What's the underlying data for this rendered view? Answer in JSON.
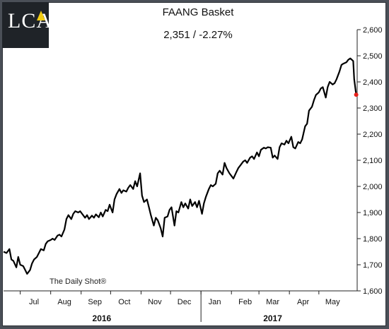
{
  "logo": {
    "text": "LCA"
  },
  "chart_data": {
    "type": "line",
    "title": "FAANG Basket",
    "subtitle": "2,351  /  -2.27%",
    "xlabel": "",
    "ylabel": "",
    "ylim": [
      1600,
      2600
    ],
    "yticks": [
      1600,
      1700,
      1800,
      1900,
      2000,
      2100,
      2200,
      2300,
      2400,
      2500,
      2600
    ],
    "ytick_labels": [
      "1,600",
      "1,700",
      "1,800",
      "1,900",
      "2,000",
      "2,100",
      "2,200",
      "2,300",
      "2,400",
      "2,500",
      "2,600"
    ],
    "xlim": [
      "2016-06-14",
      "2017-06-09"
    ],
    "month_labels": [
      {
        "label": "Jul",
        "date": "2016-07-15"
      },
      {
        "label": "Aug",
        "date": "2016-08-15"
      },
      {
        "label": "Sep",
        "date": "2016-09-15"
      },
      {
        "label": "Oct",
        "date": "2016-10-15"
      },
      {
        "label": "Nov",
        "date": "2016-11-15"
      },
      {
        "label": "Dec",
        "date": "2016-12-15"
      },
      {
        "label": "Jan",
        "date": "2017-01-15"
      },
      {
        "label": "Feb",
        "date": "2017-02-15"
      },
      {
        "label": "Mar",
        "date": "2017-03-15"
      },
      {
        "label": "Apr",
        "date": "2017-04-15"
      },
      {
        "label": "May",
        "date": "2017-05-15"
      }
    ],
    "year_labels": [
      {
        "label": "2016",
        "date": "2016-09-22"
      },
      {
        "label": "2017",
        "date": "2017-03-15"
      }
    ],
    "year_divider": "2017-01-01",
    "grid": false,
    "watermark": "The Daily Shot®",
    "line_color": "#000000",
    "marker_color": "#e8201a",
    "series": [
      {
        "values": [
          [
            "2016-06-14",
            1750
          ],
          [
            "2016-06-17",
            1745
          ],
          [
            "2016-06-20",
            1760
          ],
          [
            "2016-06-22",
            1720
          ],
          [
            "2016-06-24",
            1715
          ],
          [
            "2016-06-27",
            1690
          ],
          [
            "2016-06-29",
            1730
          ],
          [
            "2016-07-01",
            1700
          ],
          [
            "2016-07-04",
            1695
          ],
          [
            "2016-07-06",
            1680
          ],
          [
            "2016-07-08",
            1665
          ],
          [
            "2016-07-11",
            1680
          ],
          [
            "2016-07-13",
            1705
          ],
          [
            "2016-07-15",
            1720
          ],
          [
            "2016-07-18",
            1730
          ],
          [
            "2016-07-20",
            1745
          ],
          [
            "2016-07-22",
            1760
          ],
          [
            "2016-07-25",
            1755
          ],
          [
            "2016-07-27",
            1780
          ],
          [
            "2016-07-29",
            1790
          ],
          [
            "2016-08-01",
            1795
          ],
          [
            "2016-08-03",
            1800
          ],
          [
            "2016-08-05",
            1795
          ],
          [
            "2016-08-08",
            1812
          ],
          [
            "2016-08-10",
            1815
          ],
          [
            "2016-08-12",
            1808
          ],
          [
            "2016-08-15",
            1835
          ],
          [
            "2016-08-17",
            1875
          ],
          [
            "2016-08-19",
            1890
          ],
          [
            "2016-08-22",
            1875
          ],
          [
            "2016-08-24",
            1895
          ],
          [
            "2016-08-26",
            1905
          ],
          [
            "2016-08-29",
            1900
          ],
          [
            "2016-08-31",
            1905
          ],
          [
            "2016-09-02",
            1895
          ],
          [
            "2016-09-05",
            1880
          ],
          [
            "2016-09-07",
            1890
          ],
          [
            "2016-09-09",
            1875
          ],
          [
            "2016-09-12",
            1888
          ],
          [
            "2016-09-14",
            1880
          ],
          [
            "2016-09-16",
            1893
          ],
          [
            "2016-09-19",
            1882
          ],
          [
            "2016-09-21",
            1900
          ],
          [
            "2016-09-23",
            1885
          ],
          [
            "2016-09-26",
            1910
          ],
          [
            "2016-09-28",
            1905
          ],
          [
            "2016-09-30",
            1930
          ],
          [
            "2016-10-03",
            1900
          ],
          [
            "2016-10-05",
            1950
          ],
          [
            "2016-10-07",
            1970
          ],
          [
            "2016-10-10",
            1990
          ],
          [
            "2016-10-12",
            1975
          ],
          [
            "2016-10-14",
            1985
          ],
          [
            "2016-10-17",
            1980
          ],
          [
            "2016-10-19",
            1995
          ],
          [
            "2016-10-21",
            2005
          ],
          [
            "2016-10-24",
            1990
          ],
          [
            "2016-10-26",
            2020
          ],
          [
            "2016-10-28",
            2000
          ],
          [
            "2016-10-31",
            2050
          ],
          [
            "2016-11-02",
            1965
          ],
          [
            "2016-11-04",
            1940
          ],
          [
            "2016-11-07",
            1950
          ],
          [
            "2016-11-09",
            1920
          ],
          [
            "2016-11-11",
            1890
          ],
          [
            "2016-11-14",
            1850
          ],
          [
            "2016-11-16",
            1880
          ],
          [
            "2016-11-18",
            1870
          ],
          [
            "2016-11-21",
            1840
          ],
          [
            "2016-11-23",
            1808
          ],
          [
            "2016-11-25",
            1880
          ],
          [
            "2016-11-28",
            1885
          ],
          [
            "2016-11-30",
            1910
          ],
          [
            "2016-12-02",
            1920
          ],
          [
            "2016-12-05",
            1850
          ],
          [
            "2016-12-07",
            1905
          ],
          [
            "2016-12-09",
            1900
          ],
          [
            "2016-12-12",
            1940
          ],
          [
            "2016-12-14",
            1920
          ],
          [
            "2016-12-16",
            1935
          ],
          [
            "2016-12-19",
            1915
          ],
          [
            "2016-12-21",
            1950
          ],
          [
            "2016-12-23",
            1925
          ],
          [
            "2016-12-26",
            1940
          ],
          [
            "2016-12-28",
            1920
          ],
          [
            "2016-12-30",
            1945
          ],
          [
            "2017-01-02",
            1895
          ],
          [
            "2017-01-04",
            1935
          ],
          [
            "2017-01-06",
            1960
          ],
          [
            "2017-01-09",
            1990
          ],
          [
            "2017-01-11",
            2005
          ],
          [
            "2017-01-13",
            2000
          ],
          [
            "2017-01-16",
            2010
          ],
          [
            "2017-01-18",
            2050
          ],
          [
            "2017-01-20",
            2060
          ],
          [
            "2017-01-23",
            2045
          ],
          [
            "2017-01-25",
            2090
          ],
          [
            "2017-01-27",
            2070
          ],
          [
            "2017-01-30",
            2050
          ],
          [
            "2017-02-01",
            2040
          ],
          [
            "2017-02-03",
            2030
          ],
          [
            "2017-02-06",
            2055
          ],
          [
            "2017-02-08",
            2070
          ],
          [
            "2017-02-10",
            2080
          ],
          [
            "2017-02-13",
            2095
          ],
          [
            "2017-02-15",
            2100
          ],
          [
            "2017-02-17",
            2090
          ],
          [
            "2017-02-20",
            2110
          ],
          [
            "2017-02-22",
            2115
          ],
          [
            "2017-02-24",
            2105
          ],
          [
            "2017-02-27",
            2130
          ],
          [
            "2017-03-01",
            2115
          ],
          [
            "2017-03-03",
            2140
          ],
          [
            "2017-03-06",
            2148
          ],
          [
            "2017-03-08",
            2145
          ],
          [
            "2017-03-10",
            2150
          ],
          [
            "2017-03-13",
            2148
          ],
          [
            "2017-03-15",
            2110
          ],
          [
            "2017-03-17",
            2118
          ],
          [
            "2017-03-20",
            2105
          ],
          [
            "2017-03-22",
            2150
          ],
          [
            "2017-03-24",
            2165
          ],
          [
            "2017-03-27",
            2160
          ],
          [
            "2017-03-29",
            2175
          ],
          [
            "2017-03-31",
            2165
          ],
          [
            "2017-04-03",
            2190
          ],
          [
            "2017-04-05",
            2150
          ],
          [
            "2017-04-07",
            2145
          ],
          [
            "2017-04-10",
            2170
          ],
          [
            "2017-04-12",
            2165
          ],
          [
            "2017-04-14",
            2180
          ],
          [
            "2017-04-17",
            2230
          ],
          [
            "2017-04-19",
            2240
          ],
          [
            "2017-04-21",
            2290
          ],
          [
            "2017-04-24",
            2305
          ],
          [
            "2017-04-26",
            2330
          ],
          [
            "2017-04-28",
            2350
          ],
          [
            "2017-05-01",
            2360
          ],
          [
            "2017-05-03",
            2375
          ],
          [
            "2017-05-05",
            2380
          ],
          [
            "2017-05-08",
            2340
          ],
          [
            "2017-05-10",
            2380
          ],
          [
            "2017-05-12",
            2400
          ],
          [
            "2017-05-15",
            2390
          ],
          [
            "2017-05-17",
            2395
          ],
          [
            "2017-05-19",
            2410
          ],
          [
            "2017-05-22",
            2440
          ],
          [
            "2017-05-24",
            2465
          ],
          [
            "2017-05-26",
            2470
          ],
          [
            "2017-05-29",
            2475
          ],
          [
            "2017-05-31",
            2485
          ],
          [
            "2017-06-02",
            2490
          ],
          [
            "2017-06-05",
            2480
          ],
          [
            "2017-06-06",
            2410
          ],
          [
            "2017-06-08",
            2351
          ]
        ]
      }
    ]
  }
}
